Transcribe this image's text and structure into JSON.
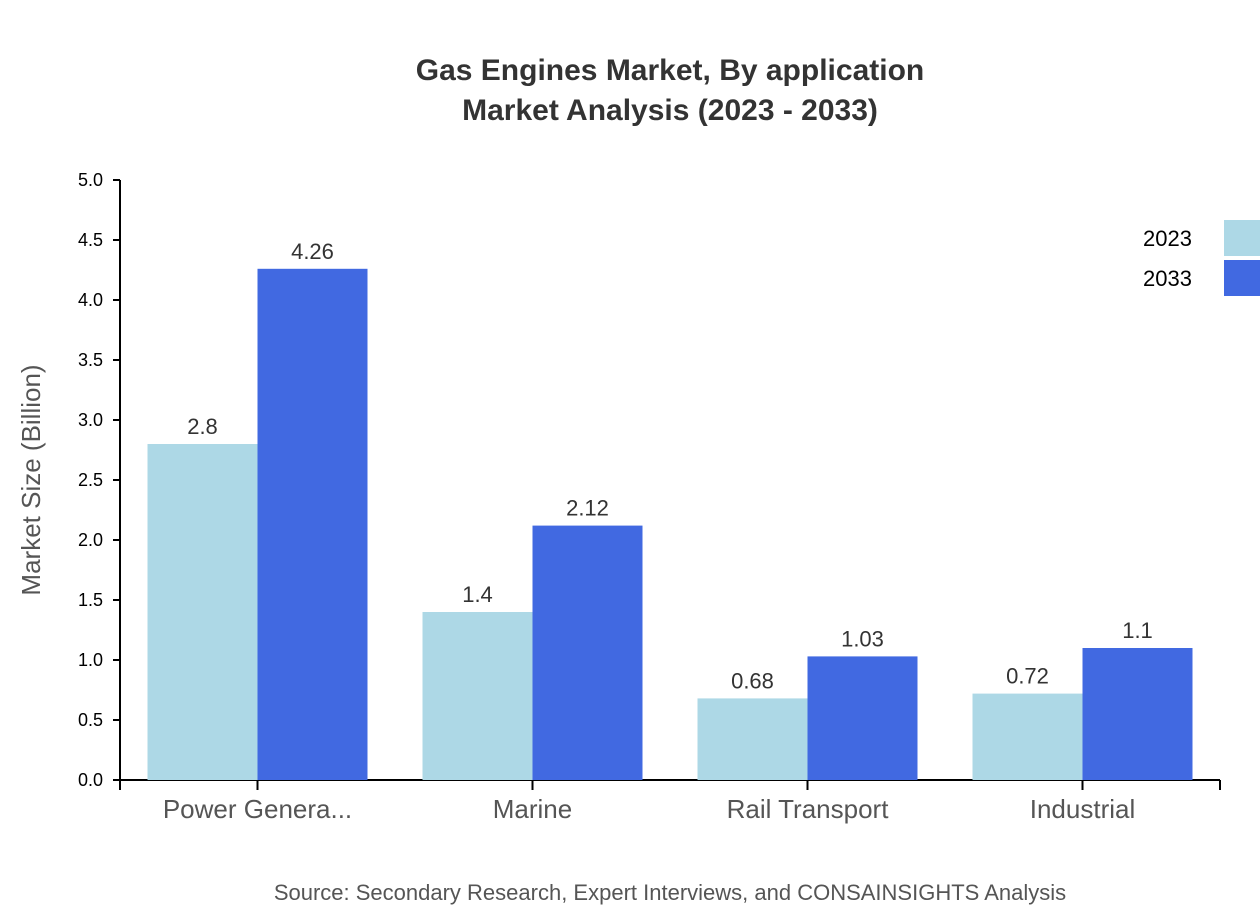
{
  "chart_data": {
    "type": "bar",
    "title": "Gas Engines Market, By application",
    "subtitle": "Market Analysis (2023 - 2033)",
    "ylabel": "Market Size (Billion)",
    "categories": [
      "Power Genera...",
      "Marine",
      "Rail Transport",
      "Industrial"
    ],
    "series": [
      {
        "name": "2023",
        "values": [
          2.8,
          1.4,
          0.68,
          0.72
        ],
        "color": "#add8e6"
      },
      {
        "name": "2033",
        "values": [
          4.26,
          2.12,
          1.03,
          1.1
        ],
        "color": "#4169e1"
      }
    ],
    "ylim": [
      0,
      5.0
    ],
    "yticks": [
      "0.0",
      "0.5",
      "1.0",
      "1.5",
      "2.0",
      "2.5",
      "3.0",
      "3.5",
      "4.0",
      "4.5",
      "5.0"
    ],
    "grid": false,
    "legend_position": "top-right"
  },
  "source": "Source: Secondary Research, Expert Interviews, and CONSAINSIGHTS Analysis"
}
